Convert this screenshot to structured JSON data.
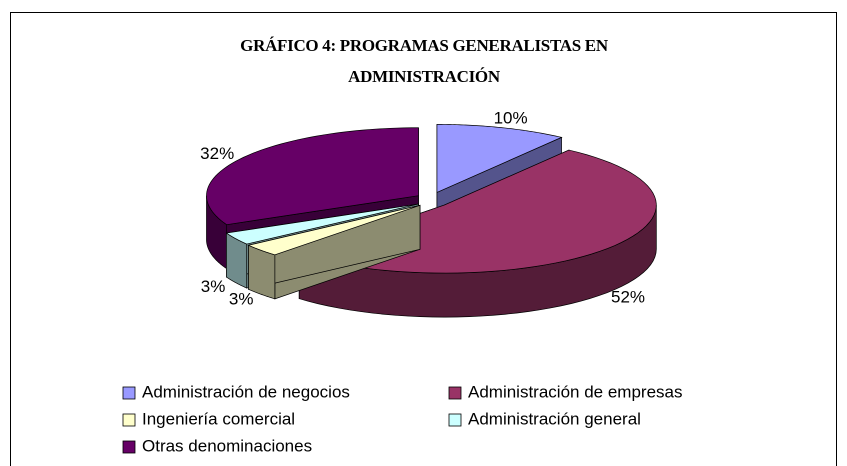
{
  "chart_data": {
    "type": "pie3d",
    "title": "GRÁFICO 4: PROGRAMAS GENERALISTAS EN ADMINISTRACIÓN",
    "categories": [
      "Administración de negocios",
      "Administración de empresas",
      "Ingeniería comercial",
      "Administración general",
      "Otras denominaciones"
    ],
    "values": [
      10,
      52,
      3,
      3,
      32
    ],
    "value_labels": [
      "10%",
      "52%",
      "3%",
      "3%",
      "32%"
    ],
    "colors": [
      "#9999ff",
      "#993366",
      "#ffffcc",
      "#ccffff",
      "#660066"
    ],
    "legend": "bottom"
  }
}
